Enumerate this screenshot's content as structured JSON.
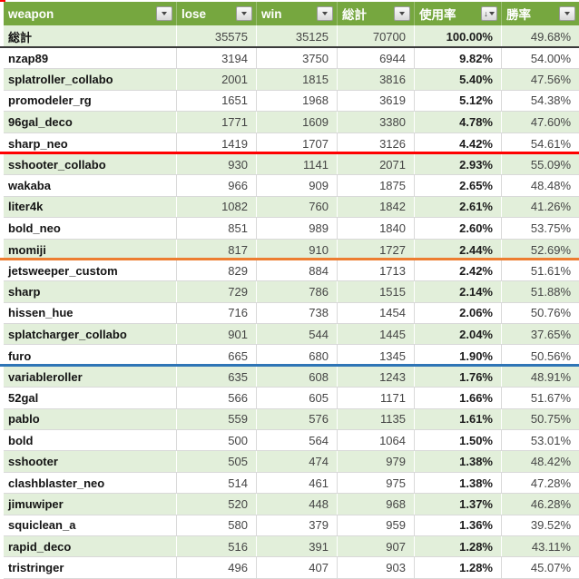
{
  "colors": {
    "header_bg": "#76A73F",
    "header_text": "#FFFFFF",
    "band_green": "#E2EFDA",
    "row_white": "#FFFFFF",
    "grid_line": "#D9D9D9",
    "total_border": "#3A3A3A",
    "sep_red": "#FF0000",
    "sep_orange": "#ED7D31",
    "sep_blue": "#2E75B6",
    "number_text": "#454545",
    "weapon_text": "#141414"
  },
  "header": {
    "columns": [
      {
        "label": "weapon",
        "filter": "plain"
      },
      {
        "label": "lose",
        "filter": "plain"
      },
      {
        "label": "win",
        "filter": "plain"
      },
      {
        "label": "総計",
        "filter": "plain"
      },
      {
        "label": "使用率",
        "filter": "sorted-desc"
      },
      {
        "label": "勝率",
        "filter": "plain"
      }
    ]
  },
  "total_row": {
    "weapon": "総計",
    "lose": "35575",
    "win": "35125",
    "total": "70700",
    "usage": "100.00%",
    "winrate": "49.68%"
  },
  "rows": [
    {
      "weapon": "nzap89",
      "lose": "3194",
      "win": "3750",
      "total": "6944",
      "usage": "9.82%",
      "winrate": "54.00%",
      "separator": ""
    },
    {
      "weapon": "splatroller_collabo",
      "lose": "2001",
      "win": "1815",
      "total": "3816",
      "usage": "5.40%",
      "winrate": "47.56%",
      "separator": ""
    },
    {
      "weapon": "promodeler_rg",
      "lose": "1651",
      "win": "1968",
      "total": "3619",
      "usage": "5.12%",
      "winrate": "54.38%",
      "separator": ""
    },
    {
      "weapon": "96gal_deco",
      "lose": "1771",
      "win": "1609",
      "total": "3380",
      "usage": "4.78%",
      "winrate": "47.60%",
      "separator": ""
    },
    {
      "weapon": "sharp_neo",
      "lose": "1419",
      "win": "1707",
      "total": "3126",
      "usage": "4.42%",
      "winrate": "54.61%",
      "separator": "red"
    },
    {
      "weapon": "sshooter_collabo",
      "lose": "930",
      "win": "1141",
      "total": "2071",
      "usage": "2.93%",
      "winrate": "55.09%",
      "separator": ""
    },
    {
      "weapon": "wakaba",
      "lose": "966",
      "win": "909",
      "total": "1875",
      "usage": "2.65%",
      "winrate": "48.48%",
      "separator": ""
    },
    {
      "weapon": "liter4k",
      "lose": "1082",
      "win": "760",
      "total": "1842",
      "usage": "2.61%",
      "winrate": "41.26%",
      "separator": ""
    },
    {
      "weapon": "bold_neo",
      "lose": "851",
      "win": "989",
      "total": "1840",
      "usage": "2.60%",
      "winrate": "53.75%",
      "separator": ""
    },
    {
      "weapon": "momiji",
      "lose": "817",
      "win": "910",
      "total": "1727",
      "usage": "2.44%",
      "winrate": "52.69%",
      "separator": "orange"
    },
    {
      "weapon": "jetsweeper_custom",
      "lose": "829",
      "win": "884",
      "total": "1713",
      "usage": "2.42%",
      "winrate": "51.61%",
      "separator": ""
    },
    {
      "weapon": "sharp",
      "lose": "729",
      "win": "786",
      "total": "1515",
      "usage": "2.14%",
      "winrate": "51.88%",
      "separator": ""
    },
    {
      "weapon": "hissen_hue",
      "lose": "716",
      "win": "738",
      "total": "1454",
      "usage": "2.06%",
      "winrate": "50.76%",
      "separator": ""
    },
    {
      "weapon": "splatcharger_collabo",
      "lose": "901",
      "win": "544",
      "total": "1445",
      "usage": "2.04%",
      "winrate": "37.65%",
      "separator": ""
    },
    {
      "weapon": "furo",
      "lose": "665",
      "win": "680",
      "total": "1345",
      "usage": "1.90%",
      "winrate": "50.56%",
      "separator": "blue"
    },
    {
      "weapon": "variableroller",
      "lose": "635",
      "win": "608",
      "total": "1243",
      "usage": "1.76%",
      "winrate": "48.91%",
      "separator": ""
    },
    {
      "weapon": "52gal",
      "lose": "566",
      "win": "605",
      "total": "1171",
      "usage": "1.66%",
      "winrate": "51.67%",
      "separator": ""
    },
    {
      "weapon": "pablo",
      "lose": "559",
      "win": "576",
      "total": "1135",
      "usage": "1.61%",
      "winrate": "50.75%",
      "separator": ""
    },
    {
      "weapon": "bold",
      "lose": "500",
      "win": "564",
      "total": "1064",
      "usage": "1.50%",
      "winrate": "53.01%",
      "separator": ""
    },
    {
      "weapon": "sshooter",
      "lose": "505",
      "win": "474",
      "total": "979",
      "usage": "1.38%",
      "winrate": "48.42%",
      "separator": ""
    },
    {
      "weapon": "clashblaster_neo",
      "lose": "514",
      "win": "461",
      "total": "975",
      "usage": "1.38%",
      "winrate": "47.28%",
      "separator": ""
    },
    {
      "weapon": "jimuwiper",
      "lose": "520",
      "win": "448",
      "total": "968",
      "usage": "1.37%",
      "winrate": "46.28%",
      "separator": ""
    },
    {
      "weapon": "squiclean_a",
      "lose": "580",
      "win": "379",
      "total": "959",
      "usage": "1.36%",
      "winrate": "39.52%",
      "separator": ""
    },
    {
      "weapon": "rapid_deco",
      "lose": "516",
      "win": "391",
      "total": "907",
      "usage": "1.28%",
      "winrate": "43.11%",
      "separator": ""
    },
    {
      "weapon": "tristringer",
      "lose": "496",
      "win": "407",
      "total": "903",
      "usage": "1.28%",
      "winrate": "45.07%",
      "separator": ""
    }
  ]
}
